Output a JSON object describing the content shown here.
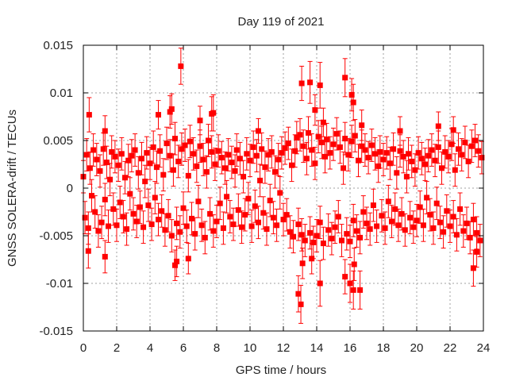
{
  "chart_data": {
    "type": "scatter",
    "title": "Day 119 of 2021",
    "xlabel": "GPS time / hours",
    "ylabel": "GNSS SOLERA-drift / TECUs",
    "xlim": [
      0,
      24
    ],
    "ylim": [
      -0.015,
      0.015
    ],
    "xticks": [
      "0",
      "2",
      "4",
      "6",
      "8",
      "10",
      "12",
      "14",
      "16",
      "18",
      "20",
      "22",
      "24"
    ],
    "xtick_values": [
      0,
      2,
      4,
      6,
      8,
      10,
      12,
      14,
      16,
      18,
      20,
      22,
      24
    ],
    "yticks": [
      "0.015",
      "0.01",
      "0.005",
      "0",
      "-0.005",
      "-0.01",
      "-0.015"
    ],
    "ytick_values": [
      0.015,
      0.01,
      0.005,
      0,
      -0.005,
      -0.01,
      -0.015
    ],
    "grid": true,
    "marker": "filled-square with error bars",
    "color": "#ff0000",
    "series": [
      {
        "name": "SOLERA drift",
        "x_start": 0,
        "x_step": 0.1,
        "typical_error": 0.0017,
        "y": [
          0.0012,
          -0.0031,
          0.0035,
          -0.0042,
          0.0021,
          -0.0008,
          0.004,
          -0.0025,
          0.003,
          -0.0045,
          0.0018,
          -0.0036,
          0.0041,
          -0.0012,
          0.0027,
          -0.004,
          0.0009,
          0.0038,
          -0.0022,
          0.0033,
          -0.0039,
          0.0024,
          -0.0015,
          0.0036,
          -0.003,
          0.0011,
          -0.0043,
          0.0029,
          -0.0006,
          0.0034,
          -0.0027,
          0.004,
          -0.0035,
          0.0016,
          -0.002,
          0.0031,
          -0.0041,
          0.0007,
          0.0037,
          -0.0018,
          0.0026,
          -0.0038,
          0.0043,
          -0.001,
          0.0022,
          -0.0033,
          0.0039,
          -0.0024,
          0.0014,
          -0.0044,
          0.0047,
          -0.0029,
          0.0034,
          -0.005,
          0.0019,
          0.0052,
          -0.0037,
          0.0028,
          -0.0046,
          0.0041,
          -0.0021,
          0.0045,
          -0.004,
          0.0013,
          0.0049,
          -0.0032,
          0.0036,
          -0.0048,
          0.0023,
          -0.0014,
          0.0044,
          -0.0039,
          0.003,
          -0.0052,
          0.0017,
          0.005,
          -0.0027,
          0.0038,
          -0.0045,
          0.0025,
          -0.0035,
          0.0039,
          -0.0016,
          0.0032,
          -0.0042,
          0.0021,
          -0.0009,
          0.0035,
          -0.003,
          0.0027,
          -0.0038,
          0.0018,
          0.004,
          -0.0023,
          0.0031,
          -0.0041,
          0.0012,
          -0.0028,
          0.0036,
          -0.0011,
          0.0029,
          -0.004,
          0.0043,
          -0.0019,
          0.0034,
          -0.0036,
          0.0008,
          0.0041,
          -0.0026,
          0.0022,
          -0.0043,
          0.0035,
          -0.0013,
          0.0038,
          -0.0031,
          0.0017,
          -0.0039,
          0.003,
          -0.0005,
          0.0037,
          -0.0033,
          0.0042,
          -0.0028,
          0.0047,
          -0.0046,
          0.0024,
          -0.0051,
          0.0039,
          0.0053,
          -0.0038,
          0.0056,
          -0.0049,
          0.0044,
          -0.0055,
          0.0031,
          0.0058,
          -0.0047,
          0.004,
          -0.0057,
          0.0026,
          -0.005,
          0.0054,
          -0.0036,
          0.0048,
          -0.0058,
          0.0033,
          0.0051,
          -0.0044,
          0.0037,
          -0.0053,
          0.0046,
          -0.0041,
          0.0057,
          -0.003,
          0.0043,
          -0.0055,
          0.0021,
          0.0052,
          -0.0048,
          0.0035,
          -0.0056,
          0.0049,
          -0.0034,
          0.0055,
          -0.0045,
          0.0029,
          -0.0052,
          0.0044,
          -0.0025,
          0.004,
          -0.0037,
          0.0032,
          -0.0043,
          0.0045,
          -0.0018,
          0.0036,
          -0.004,
          0.0023,
          0.0038,
          -0.0029,
          0.003,
          -0.0042,
          0.0037,
          -0.0014,
          0.0026,
          -0.0035,
          0.0041,
          -0.0022,
          0.0016,
          -0.0039,
          0.0039,
          -0.0027,
          0.0033,
          -0.0044,
          0.0012,
          0.0036,
          -0.0031,
          0.0028,
          -0.0041,
          0.0019,
          -0.0034,
          0.0037,
          -0.002,
          0.0031,
          -0.0039,
          0.0025,
          -0.001,
          0.0034,
          -0.0028,
          0.004,
          -0.0042,
          0.0029,
          -0.0016,
          0.0043,
          -0.0036,
          0.0021,
          -0.0046,
          0.0038,
          -0.0024,
          0.0033,
          -0.004,
          0.0046,
          -0.003,
          0.0019,
          -0.0049,
          0.0041,
          -0.0022,
          0.0035,
          -0.0045,
          0.0048,
          -0.0037,
          0.0028,
          -0.0052,
          0.0044,
          -0.0033,
          0.005,
          -0.0047,
          0.0039,
          -0.0055,
          0.0032
        ],
        "outliers": [
          [
            0.35,
            0.0077,
            0.0018
          ],
          [
            0.3,
            -0.0066,
            0.0018
          ],
          [
            1.3,
            -0.0072,
            0.0017
          ],
          [
            1.3,
            0.006,
            0.0016
          ],
          [
            4.5,
            0.0077,
            0.0015
          ],
          [
            5.2,
            0.008,
            0.0017
          ],
          [
            5.3,
            0.0083,
            0.0016
          ],
          [
            5.5,
            -0.0081,
            0.0016
          ],
          [
            5.6,
            -0.0077,
            0.0016
          ],
          [
            5.85,
            0.0128,
            0.0019
          ],
          [
            6.3,
            -0.0074,
            0.0016
          ],
          [
            7.0,
            0.0071,
            0.0015
          ],
          [
            7.7,
            0.0078,
            0.0018
          ],
          [
            7.8,
            0.0079,
            0.0019
          ],
          [
            10.5,
            0.006,
            0.0013
          ],
          [
            12.9,
            -0.0111,
            0.0019
          ],
          [
            13.05,
            -0.0122,
            0.002
          ],
          [
            13.1,
            0.011,
            0.0018
          ],
          [
            13.15,
            -0.0079,
            0.0016
          ],
          [
            13.6,
            0.0111,
            0.0022
          ],
          [
            13.7,
            -0.0074,
            0.0016
          ],
          [
            13.9,
            0.0082,
            0.0016
          ],
          [
            14.2,
            0.0108,
            0.0024
          ],
          [
            14.2,
            -0.01,
            0.0024
          ],
          [
            14.4,
            0.0069,
            0.0015
          ],
          [
            15.7,
            0.0116,
            0.002
          ],
          [
            15.7,
            -0.0093,
            0.0018
          ],
          [
            16.0,
            -0.01,
            0.002
          ],
          [
            16.1,
            0.0098,
            0.0017
          ],
          [
            16.2,
            0.009,
            0.0019
          ],
          [
            16.2,
            -0.0107,
            0.002
          ],
          [
            16.25,
            -0.008,
            0.0017
          ],
          [
            16.6,
            -0.0107,
            0.002
          ],
          [
            16.7,
            0.0066,
            0.0016
          ],
          [
            19.0,
            0.006,
            0.0015
          ],
          [
            21.3,
            0.0065,
            0.0015
          ],
          [
            22.2,
            0.0061,
            0.0014
          ],
          [
            23.4,
            -0.0084,
            0.0019
          ],
          [
            23.6,
            -0.0067,
            0.0016
          ]
        ]
      }
    ]
  }
}
